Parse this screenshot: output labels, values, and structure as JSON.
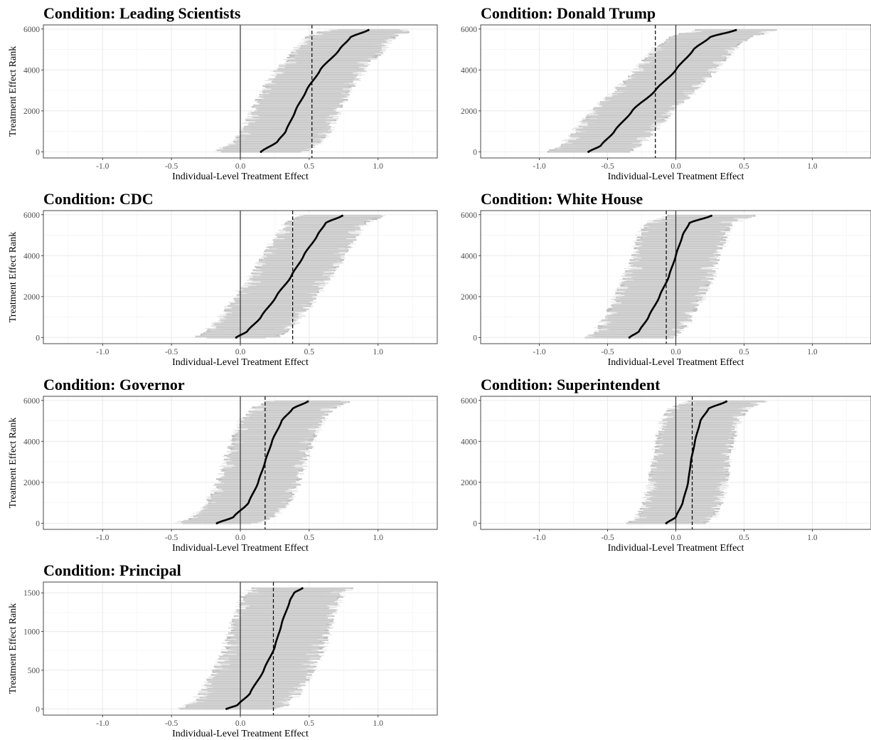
{
  "chart_data": [
    {
      "type": "scatter",
      "title": "Condition: Leading Scientists",
      "xlabel": "Individual-Level Treatment Effect",
      "ylabel": "Treatment Effect Rank",
      "xlim": [
        -1.43,
        1.43
      ],
      "ylim": [
        -300,
        6200
      ],
      "x_ticks": [
        -1.0,
        -0.5,
        0.0,
        0.5,
        1.0
      ],
      "x_tick_labels": [
        "-1.0",
        "-0.5",
        "0.0",
        "0.5",
        "1.0"
      ],
      "y_ticks": [
        0,
        2000,
        4000,
        6000
      ],
      "y_tick_labels": [
        "0",
        "2000",
        "4000",
        "6000"
      ],
      "n": 5950,
      "mean_effect": 0.52,
      "reference_line": 0.0,
      "curve": {
        "rank": [
          0,
          500,
          1000,
          2000,
          3000,
          4000,
          5000,
          5600,
          5950
        ],
        "effect": [
          0.15,
          0.27,
          0.33,
          0.4,
          0.48,
          0.58,
          0.72,
          0.8,
          0.93
        ]
      },
      "interval_halfwidth": 0.27,
      "grid": true
    },
    {
      "type": "scatter",
      "title": "Condition: Donald Trump",
      "xlabel": "Individual-Level Treatment Effect",
      "ylabel": "",
      "xlim": [
        -1.43,
        1.43
      ],
      "ylim": [
        -300,
        6200
      ],
      "x_ticks": [
        -1.0,
        -0.5,
        0.0,
        0.5,
        1.0
      ],
      "x_tick_labels": [
        "-1.0",
        "-0.5",
        "0.0",
        "0.5",
        "1.0"
      ],
      "y_ticks": [
        0,
        2000,
        4000,
        6000
      ],
      "y_tick_labels": [
        "0",
        "2000",
        "4000",
        "6000"
      ],
      "n": 5950,
      "mean_effect": -0.15,
      "reference_line": 0.0,
      "curve": {
        "rank": [
          0,
          300,
          1000,
          2000,
          3000,
          4000,
          5000,
          5600,
          5950
        ],
        "effect": [
          -0.64,
          -0.55,
          -0.45,
          -0.32,
          -0.15,
          0.0,
          0.13,
          0.25,
          0.44
        ]
      },
      "interval_halfwidth": 0.25,
      "grid": true
    },
    {
      "type": "scatter",
      "title": "Condition: CDC",
      "xlabel": "Individual-Level Treatment Effect",
      "ylabel": "Treatment Effect Rank",
      "xlim": [
        -1.43,
        1.43
      ],
      "ylim": [
        -300,
        6200
      ],
      "x_ticks": [
        -1.0,
        -0.5,
        0.0,
        0.5,
        1.0
      ],
      "x_tick_labels": [
        "-1.0",
        "-0.5",
        "0.0",
        "0.5",
        "1.0"
      ],
      "y_ticks": [
        0,
        2000,
        4000,
        6000
      ],
      "y_tick_labels": [
        "0",
        "2000",
        "4000",
        "6000"
      ],
      "n": 5950,
      "mean_effect": 0.38,
      "reference_line": 0.0,
      "curve": {
        "rank": [
          0,
          300,
          1000,
          2000,
          3000,
          4000,
          5000,
          5600,
          5950
        ],
        "effect": [
          -0.03,
          0.05,
          0.15,
          0.26,
          0.37,
          0.46,
          0.56,
          0.62,
          0.74
        ]
      },
      "interval_halfwidth": 0.25,
      "grid": true
    },
    {
      "type": "scatter",
      "title": "Condition: White House",
      "xlabel": "Individual-Level Treatment Effect",
      "ylabel": "",
      "xlim": [
        -1.43,
        1.43
      ],
      "ylim": [
        -300,
        6200
      ],
      "x_ticks": [
        -1.0,
        -0.5,
        0.0,
        0.5,
        1.0
      ],
      "x_tick_labels": [
        "-1.0",
        "-0.5",
        "0.0",
        "0.5",
        "1.0"
      ],
      "y_ticks": [
        0,
        2000,
        4000,
        6000
      ],
      "y_tick_labels": [
        "0",
        "2000",
        "4000",
        "6000"
      ],
      "n": 5950,
      "mean_effect": -0.07,
      "reference_line": 0.0,
      "curve": {
        "rank": [
          0,
          300,
          1000,
          2000,
          3000,
          4000,
          5000,
          5600,
          5950
        ],
        "effect": [
          -0.34,
          -0.27,
          -0.2,
          -0.12,
          -0.05,
          0.0,
          0.05,
          0.1,
          0.26
        ]
      },
      "interval_halfwidth": 0.27,
      "grid": true
    },
    {
      "type": "scatter",
      "title": "Condition: Governor",
      "xlabel": "Individual-Level Treatment Effect",
      "ylabel": "Treatment Effect Rank",
      "xlim": [
        -1.43,
        1.43
      ],
      "ylim": [
        -300,
        6200
      ],
      "x_ticks": [
        -1.0,
        -0.5,
        0.0,
        0.5,
        1.0
      ],
      "x_tick_labels": [
        "-1.0",
        "-0.5",
        "0.0",
        "0.5",
        "1.0"
      ],
      "y_ticks": [
        0,
        2000,
        4000,
        6000
      ],
      "y_tick_labels": [
        "0",
        "2000",
        "4000",
        "6000"
      ],
      "n": 5950,
      "mean_effect": 0.18,
      "reference_line": 0.0,
      "curve": {
        "rank": [
          0,
          300,
          1000,
          2000,
          3000,
          4000,
          5000,
          5600,
          5950
        ],
        "effect": [
          -0.17,
          -0.05,
          0.06,
          0.13,
          0.18,
          0.23,
          0.3,
          0.38,
          0.49
        ]
      },
      "interval_halfwidth": 0.25,
      "grid": true
    },
    {
      "type": "scatter",
      "title": "Condition: Superintendent",
      "xlabel": "Individual-Level Treatment Effect",
      "ylabel": "",
      "xlim": [
        -1.43,
        1.43
      ],
      "ylim": [
        -300,
        6200
      ],
      "x_ticks": [
        -1.0,
        -0.5,
        0.0,
        0.5,
        1.0
      ],
      "x_tick_labels": [
        "-1.0",
        "-0.5",
        "0.0",
        "0.5",
        "1.0"
      ],
      "y_ticks": [
        0,
        2000,
        4000,
        6000
      ],
      "y_tick_labels": [
        "0",
        "2000",
        "4000",
        "6000"
      ],
      "n": 5950,
      "mean_effect": 0.12,
      "reference_line": 0.0,
      "curve": {
        "rank": [
          0,
          300,
          1000,
          2000,
          3000,
          4000,
          5000,
          5600,
          5950
        ],
        "effect": [
          -0.07,
          0.0,
          0.05,
          0.09,
          0.11,
          0.14,
          0.18,
          0.24,
          0.37
        ]
      },
      "interval_halfwidth": 0.24,
      "grid": true
    },
    {
      "type": "scatter",
      "title": "Condition: Principal",
      "xlabel": "Individual-Level Treatment Effect",
      "ylabel": "Treatment Effect Rank",
      "xlim": [
        -1.43,
        1.43
      ],
      "ylim": [
        -80,
        1640
      ],
      "x_ticks": [
        -1.0,
        -0.5,
        0.0,
        0.5,
        1.0
      ],
      "x_tick_labels": [
        "-1.0",
        "-0.5",
        "0.0",
        "0.5",
        "1.0"
      ],
      "y_ticks": [
        0,
        500,
        1000,
        1500
      ],
      "y_tick_labels": [
        "0",
        "500",
        "1000",
        "1500"
      ],
      "n": 1560,
      "mean_effect": 0.24,
      "reference_line": 0.0,
      "curve": {
        "rank": [
          0,
          50,
          200,
          500,
          800,
          1100,
          1400,
          1500,
          1560
        ],
        "effect": [
          -0.1,
          -0.02,
          0.07,
          0.17,
          0.25,
          0.3,
          0.36,
          0.39,
          0.45
        ]
      },
      "interval_halfwidth": 0.3,
      "grid": true
    }
  ]
}
